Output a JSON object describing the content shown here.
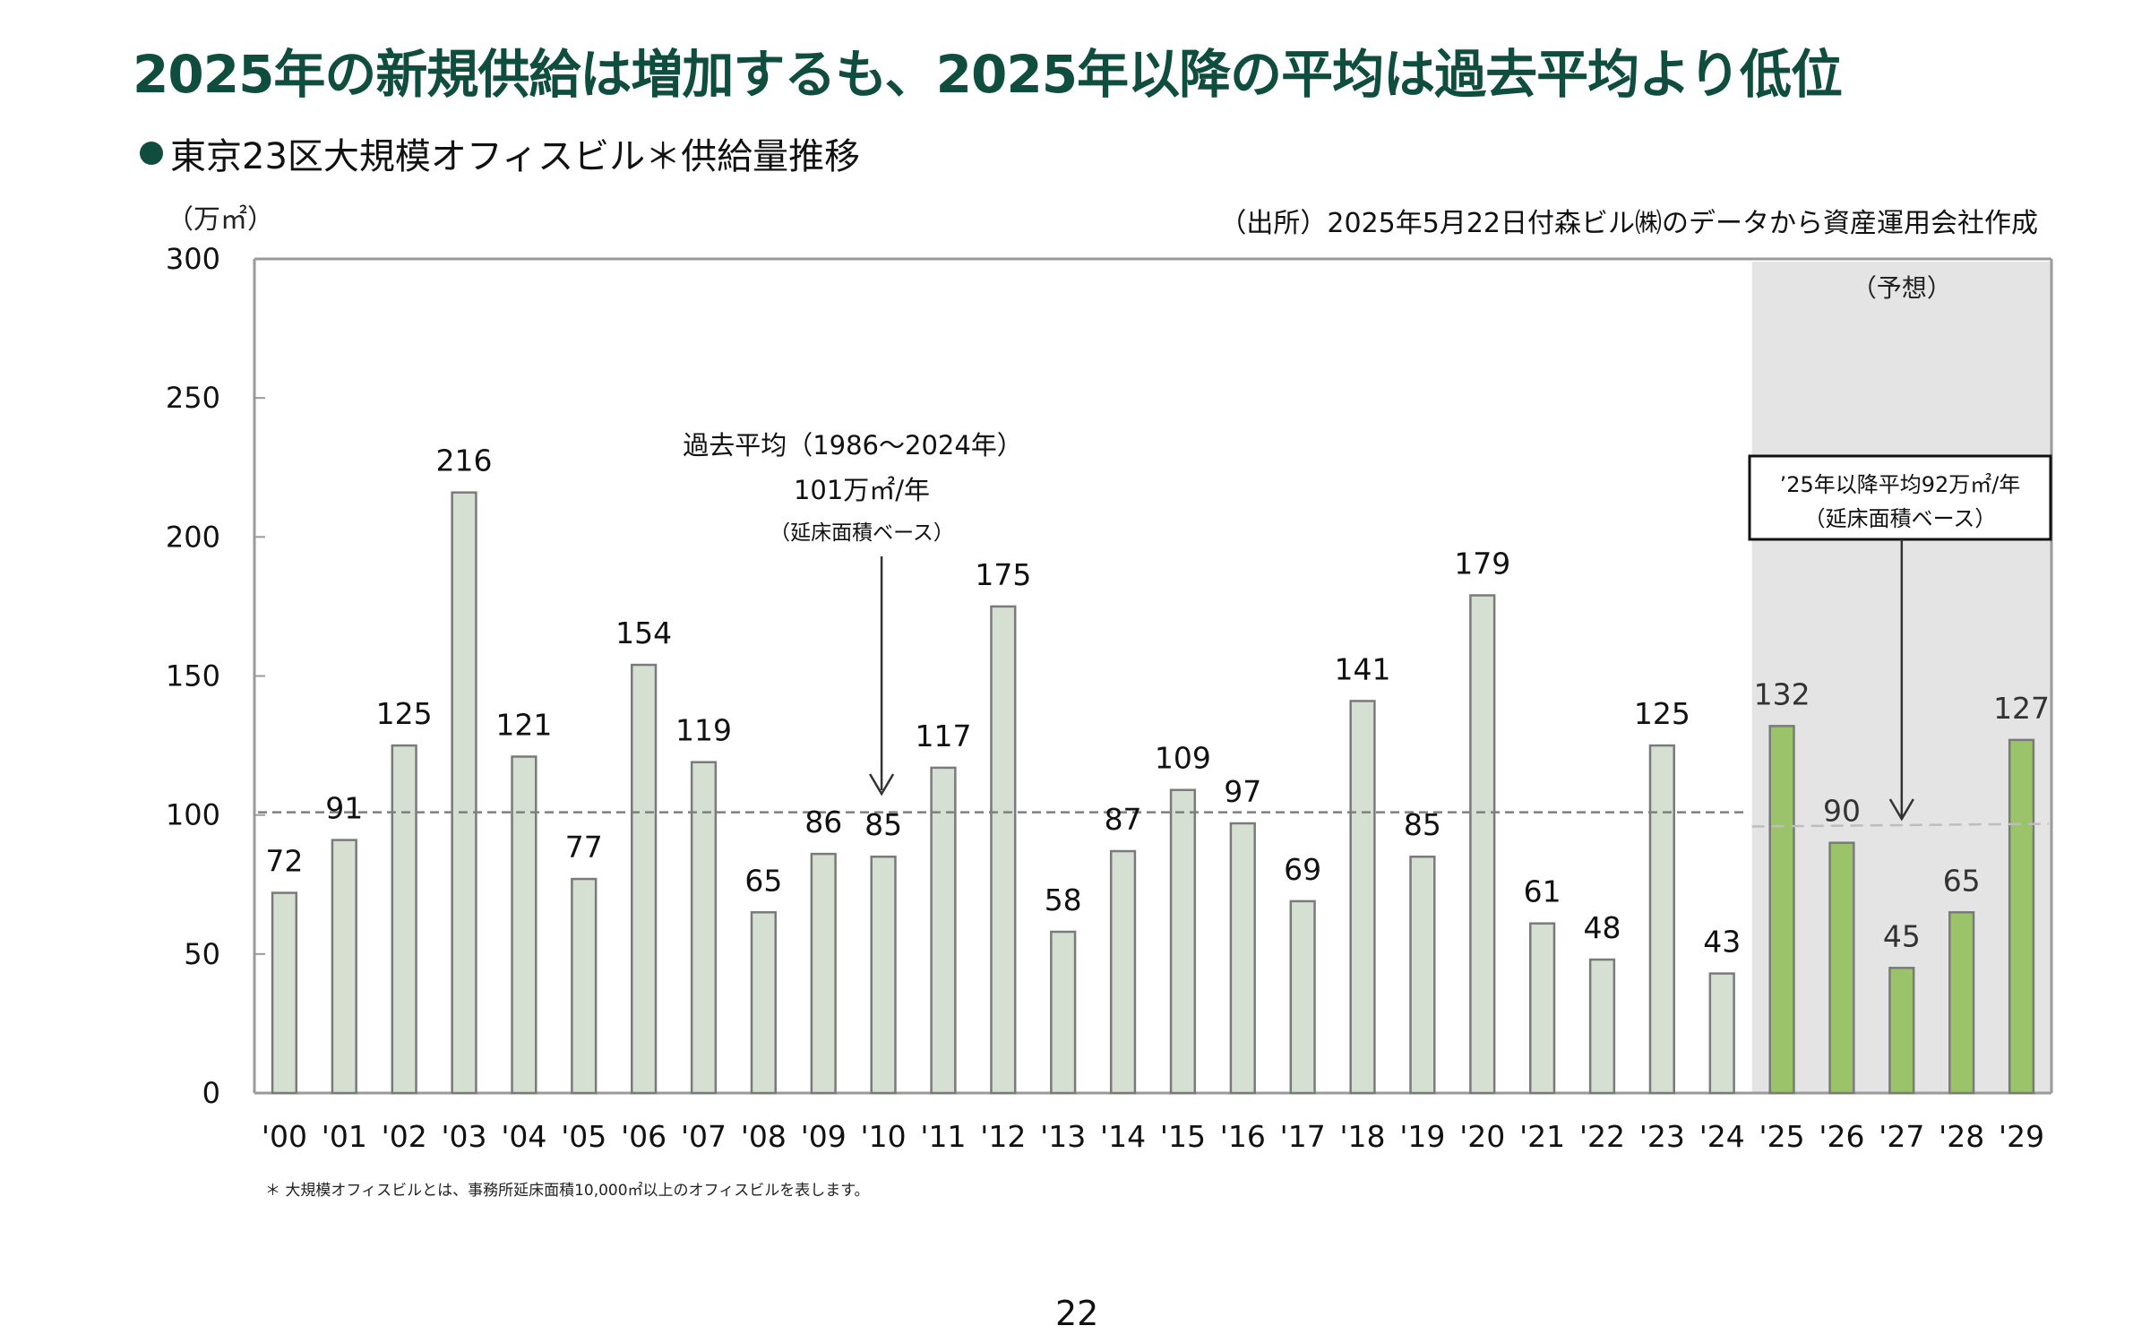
{
  "header": {
    "title": "2025年の新規供給は増加するも、2025年以降の平均は過去平均より低位",
    "subtitle": "東京23区大規模オフィスビル＊供給量推移"
  },
  "source_note": "（出所）2025年5月22日付森ビル㈱のデータから資産運用会社作成",
  "footnote": "＊ 大規模オフィスビルとは、事務所延床面積10,000㎡以上のオフィスビルを表します。",
  "page_number": "22",
  "colors": {
    "title": "#0f4d3e",
    "actual_bar": "#d5e0d3",
    "forecast_bar": "#9bc46a",
    "bar_stroke": "#7a7a7a",
    "forecast_bg": "#e4e4e4",
    "hist_avg_line": "#7f7f7f",
    "forecast_avg_line": "#bdbdbd"
  },
  "chart_data": {
    "type": "bar",
    "title": "東京23区大規模オフィスビル＊供給量推移",
    "ylabel": "（万㎡）",
    "xlabel": "",
    "ylim": [
      0,
      300
    ],
    "yticks": [
      0,
      50,
      100,
      150,
      200,
      250,
      300
    ],
    "grid": false,
    "categories": [
      "'00",
      "'01",
      "'02",
      "'03",
      "'04",
      "'05",
      "'06",
      "'07",
      "'08",
      "'09",
      "'10",
      "'11",
      "'12",
      "'13",
      "'14",
      "'15",
      "'16",
      "'17",
      "'18",
      "'19",
      "'20",
      "'21",
      "'22",
      "'23",
      "'24",
      "'25",
      "'26",
      "'27",
      "'28",
      "'29"
    ],
    "values": [
      72,
      91,
      125,
      216,
      121,
      77,
      154,
      119,
      65,
      86,
      85,
      117,
      175,
      58,
      87,
      109,
      97,
      69,
      141,
      85,
      179,
      61,
      48,
      125,
      43,
      132,
      90,
      45,
      65,
      127
    ],
    "forecast_start_index": 25,
    "forecast_region_label": "（予想）",
    "annotations": {
      "historical_average": {
        "value": 101,
        "line1": "過去平均（1986～2024年）",
        "line2": "101万㎡/年",
        "line3": "（延床面積ベース）"
      },
      "forecast_average": {
        "value": 92,
        "line1": "’25年以降平均92万㎡/年",
        "line2": "（延床面積ベース）"
      }
    }
  }
}
